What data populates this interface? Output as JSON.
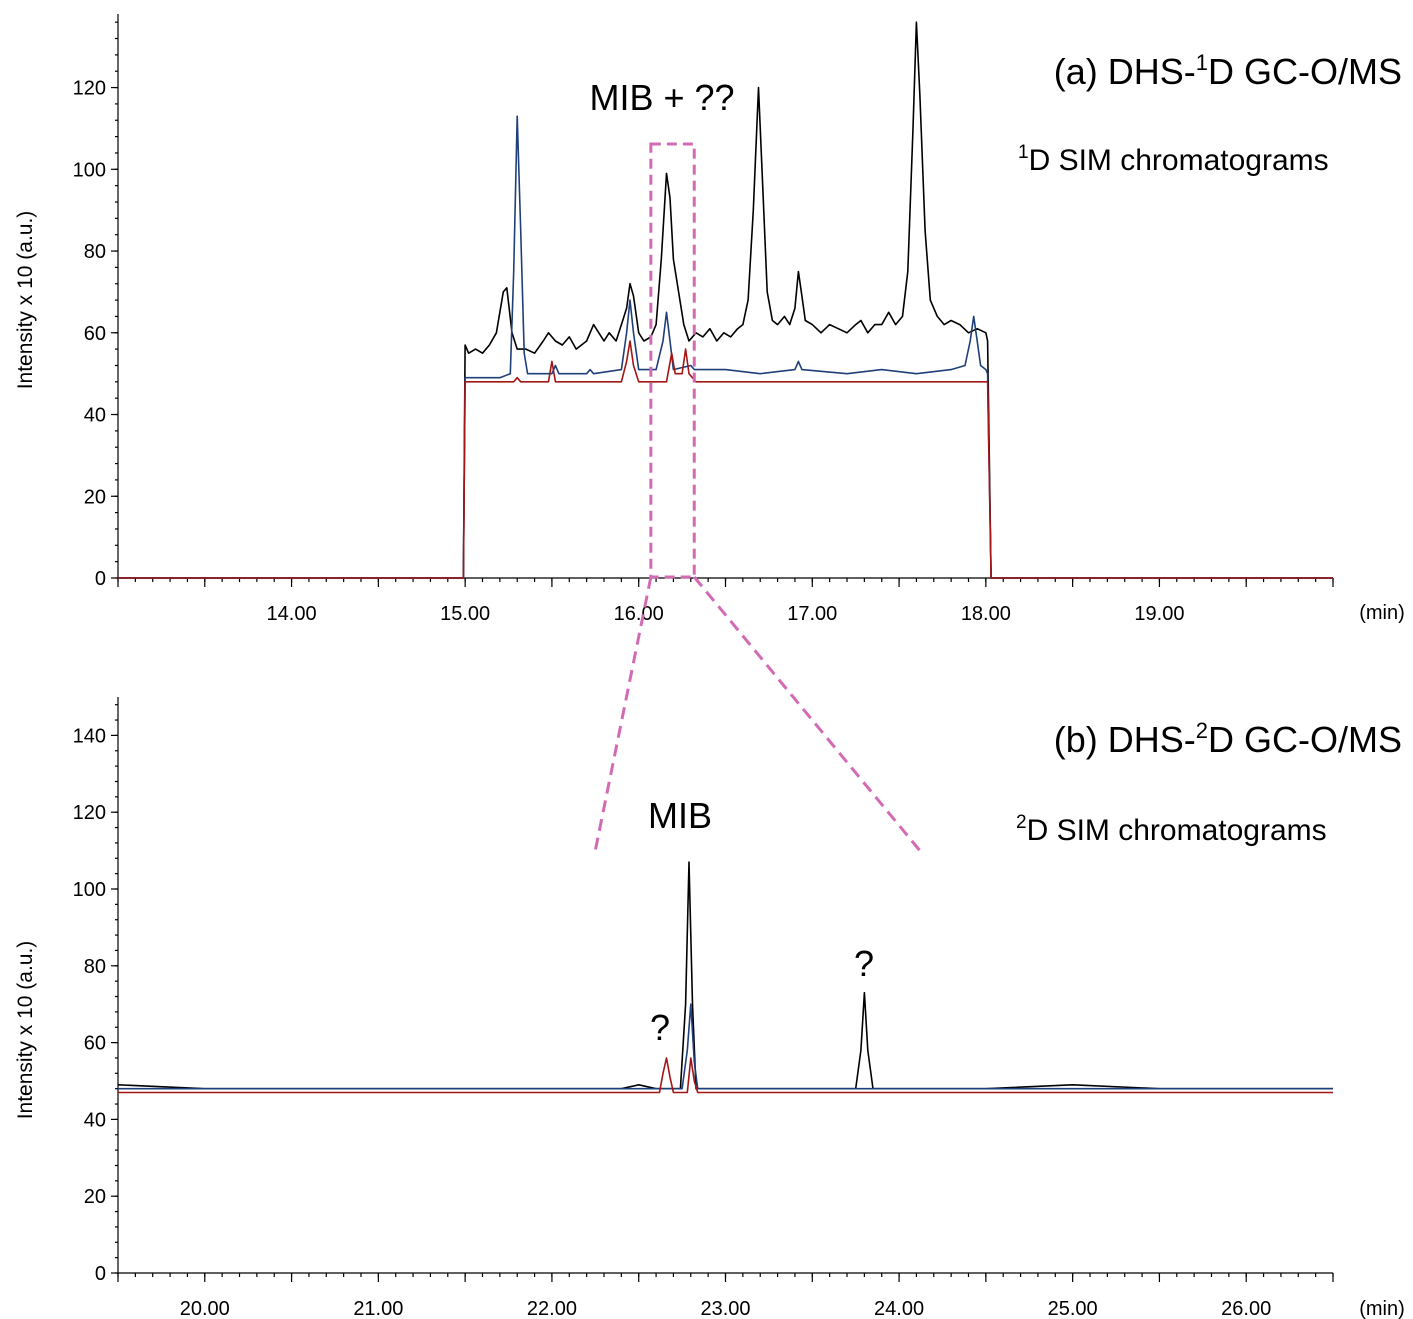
{
  "chart_data": [
    {
      "type": "line",
      "title": "(a) DHS-",
      "title_sup": "1",
      "title_rest": "D GC-O/MS",
      "subtitle_sup": "1",
      "subtitle": "D SIM chromatograms",
      "annotation": "MIB + ??",
      "ylabel": "Intensity x 10 (a.u.)",
      "xunit": "(min)",
      "xlim": [
        13.0,
        20.0
      ],
      "ylim": [
        0,
        138
      ],
      "xticks": [
        "14.00",
        "15.00",
        "16.00",
        "17.00",
        "18.00",
        "19.00"
      ],
      "yticks": [
        "0",
        "20",
        "40",
        "60",
        "80",
        "100",
        "120"
      ],
      "highlight_box": [
        16.07,
        16.32
      ],
      "colors": {
        "black": "#000000",
        "blue": "#1f3f7a",
        "red": "#a31616",
        "highlight": "#d36bb4"
      },
      "series": [
        {
          "color": "#000000",
          "points": [
            [
              13.0,
              0
            ],
            [
              14.99,
              0
            ],
            [
              15.0,
              57
            ],
            [
              15.02,
              55
            ],
            [
              15.06,
              56
            ],
            [
              15.1,
              55
            ],
            [
              15.14,
              57
            ],
            [
              15.18,
              60
            ],
            [
              15.22,
              70
            ],
            [
              15.24,
              71
            ],
            [
              15.27,
              60
            ],
            [
              15.3,
              56
            ],
            [
              15.35,
              56
            ],
            [
              15.4,
              55
            ],
            [
              15.45,
              58
            ],
            [
              15.48,
              60
            ],
            [
              15.52,
              58
            ],
            [
              15.56,
              57
            ],
            [
              15.6,
              59
            ],
            [
              15.64,
              56
            ],
            [
              15.7,
              58
            ],
            [
              15.74,
              62
            ],
            [
              15.77,
              60
            ],
            [
              15.8,
              58
            ],
            [
              15.83,
              60
            ],
            [
              15.87,
              58
            ],
            [
              15.9,
              62
            ],
            [
              15.93,
              66
            ],
            [
              15.95,
              72
            ],
            [
              15.97,
              69
            ],
            [
              16.0,
              60
            ],
            [
              16.03,
              58
            ],
            [
              16.07,
              59
            ],
            [
              16.1,
              62
            ],
            [
              16.13,
              78
            ],
            [
              16.16,
              99
            ],
            [
              16.18,
              93
            ],
            [
              16.2,
              78
            ],
            [
              16.23,
              70
            ],
            [
              16.26,
              62
            ],
            [
              16.29,
              58
            ],
            [
              16.33,
              60
            ],
            [
              16.37,
              59
            ],
            [
              16.41,
              61
            ],
            [
              16.45,
              58
            ],
            [
              16.49,
              60
            ],
            [
              16.53,
              59
            ],
            [
              16.57,
              61
            ],
            [
              16.6,
              62
            ],
            [
              16.63,
              68
            ],
            [
              16.66,
              90
            ],
            [
              16.69,
              120
            ],
            [
              16.71,
              100
            ],
            [
              16.74,
              70
            ],
            [
              16.77,
              63
            ],
            [
              16.8,
              62
            ],
            [
              16.84,
              64
            ],
            [
              16.87,
              62
            ],
            [
              16.9,
              66
            ],
            [
              16.92,
              75
            ],
            [
              16.94,
              69
            ],
            [
              16.96,
              63
            ],
            [
              17.0,
              62
            ],
            [
              17.05,
              60
            ],
            [
              17.1,
              62
            ],
            [
              17.15,
              61
            ],
            [
              17.2,
              60
            ],
            [
              17.25,
              62
            ],
            [
              17.28,
              63
            ],
            [
              17.32,
              60
            ],
            [
              17.36,
              62
            ],
            [
              17.4,
              62
            ],
            [
              17.44,
              65
            ],
            [
              17.48,
              62
            ],
            [
              17.52,
              64
            ],
            [
              17.55,
              75
            ],
            [
              17.58,
              110
            ],
            [
              17.6,
              136
            ],
            [
              17.62,
              118
            ],
            [
              17.65,
              85
            ],
            [
              17.68,
              68
            ],
            [
              17.72,
              64
            ],
            [
              17.76,
              62
            ],
            [
              17.8,
              63
            ],
            [
              17.85,
              62
            ],
            [
              17.9,
              60
            ],
            [
              17.95,
              61
            ],
            [
              18.0,
              60
            ],
            [
              18.01,
              58
            ],
            [
              18.03,
              0
            ],
            [
              20.0,
              0
            ]
          ]
        },
        {
          "color": "#1f3f7a",
          "points": [
            [
              13.0,
              0
            ],
            [
              14.99,
              0
            ],
            [
              15.0,
              49
            ],
            [
              15.1,
              49
            ],
            [
              15.2,
              49
            ],
            [
              15.26,
              50
            ],
            [
              15.28,
              75
            ],
            [
              15.3,
              113
            ],
            [
              15.32,
              85
            ],
            [
              15.34,
              55
            ],
            [
              15.36,
              50
            ],
            [
              15.5,
              50
            ],
            [
              15.52,
              52
            ],
            [
              15.54,
              50
            ],
            [
              15.7,
              50
            ],
            [
              15.72,
              51
            ],
            [
              15.74,
              50
            ],
            [
              15.9,
              51
            ],
            [
              15.93,
              60
            ],
            [
              15.95,
              68
            ],
            [
              15.97,
              60
            ],
            [
              16.0,
              51
            ],
            [
              16.1,
              51
            ],
            [
              16.14,
              58
            ],
            [
              16.16,
              65
            ],
            [
              16.18,
              58
            ],
            [
              16.2,
              51
            ],
            [
              16.3,
              52
            ],
            [
              16.32,
              51
            ],
            [
              16.5,
              51
            ],
            [
              16.7,
              50
            ],
            [
              16.9,
              51
            ],
            [
              16.92,
              53
            ],
            [
              16.94,
              51
            ],
            [
              17.2,
              50
            ],
            [
              17.4,
              51
            ],
            [
              17.6,
              50
            ],
            [
              17.8,
              51
            ],
            [
              17.88,
              52
            ],
            [
              17.91,
              58
            ],
            [
              17.93,
              64
            ],
            [
              17.95,
              58
            ],
            [
              17.97,
              52
            ],
            [
              18.0,
              51
            ],
            [
              18.01,
              50
            ],
            [
              18.03,
              0
            ],
            [
              20.0,
              0
            ]
          ]
        },
        {
          "color": "#a31616",
          "points": [
            [
              13.0,
              0
            ],
            [
              14.99,
              0
            ],
            [
              15.0,
              48
            ],
            [
              15.28,
              48
            ],
            [
              15.3,
              49
            ],
            [
              15.32,
              48
            ],
            [
              15.48,
              48
            ],
            [
              15.5,
              53
            ],
            [
              15.52,
              48
            ],
            [
              15.9,
              48
            ],
            [
              15.93,
              53
            ],
            [
              15.95,
              58
            ],
            [
              15.97,
              52
            ],
            [
              16.0,
              48
            ],
            [
              16.16,
              48
            ],
            [
              16.19,
              55
            ],
            [
              16.21,
              50
            ],
            [
              16.25,
              50
            ],
            [
              16.27,
              56
            ],
            [
              16.29,
              50
            ],
            [
              16.33,
              48
            ],
            [
              16.6,
              48
            ],
            [
              17.0,
              48
            ],
            [
              17.4,
              48
            ],
            [
              17.8,
              48
            ],
            [
              18.0,
              48
            ],
            [
              18.01,
              48
            ],
            [
              18.03,
              0
            ],
            [
              20.0,
              0
            ]
          ]
        }
      ]
    },
    {
      "type": "line",
      "title": "(b) DHS-",
      "title_sup": "2",
      "title_rest": "D GC-O/MS",
      "subtitle_sup": "2",
      "subtitle": "D SIM chromatograms",
      "annotations": [
        "MIB",
        "?",
        "?"
      ],
      "ylabel": "Intensity x 10 (a.u.)",
      "xunit": "(min)",
      "xlim": [
        19.5,
        26.5
      ],
      "ylim": [
        0,
        150
      ],
      "xticks": [
        "20.00",
        "21.00",
        "22.00",
        "23.00",
        "24.00",
        "25.00",
        "26.00"
      ],
      "yticks": [
        "0",
        "20",
        "40",
        "60",
        "80",
        "100",
        "120",
        "140"
      ],
      "series": [
        {
          "color": "#000000",
          "points": [
            [
              19.5,
              49
            ],
            [
              20.0,
              48
            ],
            [
              20.5,
              48
            ],
            [
              21.0,
              48
            ],
            [
              21.5,
              48
            ],
            [
              22.0,
              48
            ],
            [
              22.4,
              48
            ],
            [
              22.5,
              49
            ],
            [
              22.6,
              48
            ],
            [
              22.74,
              48
            ],
            [
              22.77,
              70
            ],
            [
              22.79,
              107
            ],
            [
              22.81,
              70
            ],
            [
              22.83,
              48
            ],
            [
              23.5,
              48
            ],
            [
              23.75,
              48
            ],
            [
              23.78,
              58
            ],
            [
              23.8,
              73
            ],
            [
              23.82,
              58
            ],
            [
              23.85,
              48
            ],
            [
              24.5,
              48
            ],
            [
              25.0,
              49
            ],
            [
              25.5,
              48
            ],
            [
              26.0,
              48
            ],
            [
              26.5,
              48
            ]
          ]
        },
        {
          "color": "#1f3f7a",
          "points": [
            [
              19.5,
              48
            ],
            [
              20.5,
              48
            ],
            [
              21.5,
              48
            ],
            [
              22.5,
              48
            ],
            [
              22.75,
              48
            ],
            [
              22.78,
              58
            ],
            [
              22.8,
              70
            ],
            [
              22.82,
              55
            ],
            [
              22.84,
              48
            ],
            [
              23.5,
              48
            ],
            [
              24.5,
              48
            ],
            [
              25.5,
              48
            ],
            [
              26.5,
              48
            ]
          ]
        },
        {
          "color": "#a31616",
          "points": [
            [
              19.5,
              47
            ],
            [
              20.5,
              47
            ],
            [
              21.5,
              47
            ],
            [
              22.5,
              47
            ],
            [
              22.62,
              47
            ],
            [
              22.64,
              52
            ],
            [
              22.66,
              56
            ],
            [
              22.68,
              51
            ],
            [
              22.7,
              47
            ],
            [
              22.78,
              47
            ],
            [
              22.8,
              56
            ],
            [
              22.82,
              50
            ],
            [
              22.84,
              47
            ],
            [
              23.5,
              47
            ],
            [
              24.5,
              47
            ],
            [
              25.5,
              47
            ],
            [
              26.5,
              47
            ]
          ]
        }
      ]
    }
  ]
}
